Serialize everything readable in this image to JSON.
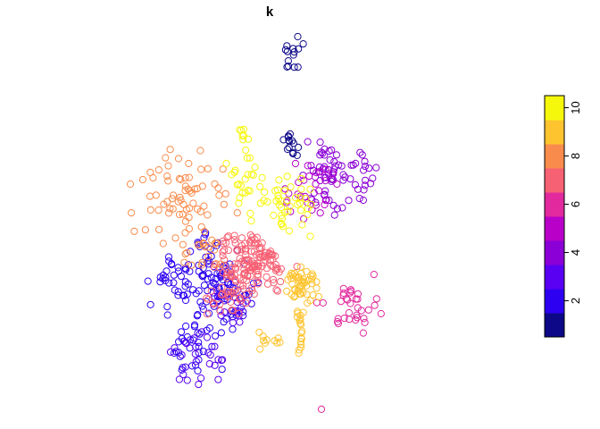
{
  "chart_data": {
    "type": "scatter",
    "title": "k",
    "legend_position": "right",
    "legend_type": "colorbar",
    "colorbar_range": [
      0.5,
      10.5
    ],
    "colorbar_ticks": [
      "2",
      "4",
      "6",
      "8",
      "10"
    ],
    "colorbar_tick_values": [
      2,
      4,
      6,
      8,
      10
    ],
    "grid": false,
    "axes_visible": false,
    "classes": [
      {
        "k": 1,
        "color": "#0D0887"
      },
      {
        "k": 2,
        "color": "#2D00F2"
      },
      {
        "k": 3,
        "color": "#5A00F2"
      },
      {
        "k": 4,
        "color": "#8A00D6"
      },
      {
        "k": 5,
        "color": "#B800C9"
      },
      {
        "k": 6,
        "color": "#E22A9E"
      },
      {
        "k": 7,
        "color": "#F76174"
      },
      {
        "k": 8,
        "color": "#F98C4C"
      },
      {
        "k": 9,
        "color": "#FDC430"
      },
      {
        "k": 10,
        "color": "#F6F80C"
      }
    ],
    "clusters": [
      {
        "k": 1,
        "n": 14,
        "x": [
          0.535,
          0.535
        ],
        "y": [
          0.88,
          0.96
        ],
        "spread": 0.012
      },
      {
        "k": 1,
        "n": 14,
        "x": [
          0.525,
          0.54
        ],
        "y": [
          0.66,
          0.72
        ],
        "spread": 0.01
      },
      {
        "k": 2,
        "n": 95,
        "x": [
          0.33,
          0.42
        ],
        "y": [
          0.23,
          0.38
        ],
        "spread": 0.03
      },
      {
        "k": 2,
        "n": 35,
        "x": [
          0.24,
          0.31
        ],
        "y": [
          0.3,
          0.4
        ],
        "spread": 0.025
      },
      {
        "k": 2,
        "n": 30,
        "x": [
          0.26,
          0.37
        ],
        "y": [
          0.12,
          0.21
        ],
        "spread": 0.02
      },
      {
        "k": 2,
        "n": 12,
        "x": [
          0.32,
          0.36
        ],
        "y": [
          0.38,
          0.46
        ],
        "spread": 0.015
      },
      {
        "k": 3,
        "n": 26,
        "x": [
          0.275,
          0.37
        ],
        "y": [
          0.08,
          0.19
        ],
        "spread": 0.018
      },
      {
        "k": 3,
        "n": 14,
        "x": [
          0.37,
          0.43
        ],
        "y": [
          0.23,
          0.3
        ],
        "spread": 0.015
      },
      {
        "k": 4,
        "n": 55,
        "x": [
          0.56,
          0.73
        ],
        "y": [
          0.52,
          0.66
        ],
        "spread": 0.018
      },
      {
        "k": 4,
        "n": 18,
        "x": [
          0.6,
          0.63
        ],
        "y": [
          0.6,
          0.67
        ],
        "spread": 0.012
      },
      {
        "k": 5,
        "n": 28,
        "x": [
          0.54,
          0.6
        ],
        "y": [
          0.52,
          0.62
        ],
        "spread": 0.02
      },
      {
        "k": 6,
        "n": 34,
        "x": [
          0.62,
          0.72
        ],
        "y": [
          0.22,
          0.32
        ],
        "spread": 0.02
      },
      {
        "k": 6,
        "n": 1,
        "x": [
          0.6,
          0.6
        ],
        "y": [
          0.005,
          0.005
        ],
        "spread": 0.0
      },
      {
        "k": 7,
        "n": 150,
        "x": [
          0.37,
          0.5
        ],
        "y": [
          0.34,
          0.43
        ],
        "spread": 0.028
      },
      {
        "k": 7,
        "n": 22,
        "x": [
          0.36,
          0.42
        ],
        "y": [
          0.27,
          0.33
        ],
        "spread": 0.02
      },
      {
        "k": 8,
        "n": 70,
        "x": [
          0.2,
          0.38
        ],
        "y": [
          0.48,
          0.66
        ],
        "spread": 0.04
      },
      {
        "k": 8,
        "n": 20,
        "x": [
          0.3,
          0.37
        ],
        "y": [
          0.38,
          0.46
        ],
        "spread": 0.02
      },
      {
        "k": 9,
        "n": 50,
        "x": [
          0.53,
          0.58
        ],
        "y": [
          0.3,
          0.36
        ],
        "spread": 0.012
      },
      {
        "k": 9,
        "n": 18,
        "x": [
          0.55,
          0.555
        ],
        "y": [
          0.14,
          0.26
        ],
        "spread": 0.004
      },
      {
        "k": 9,
        "n": 10,
        "x": [
          0.46,
          0.5
        ],
        "y": [
          0.17,
          0.22
        ],
        "spread": 0.012
      },
      {
        "k": 10,
        "n": 45,
        "x": [
          0.48,
          0.56
        ],
        "y": [
          0.48,
          0.58
        ],
        "spread": 0.025
      },
      {
        "k": 10,
        "n": 20,
        "x": [
          0.4,
          0.46
        ],
        "y": [
          0.55,
          0.65
        ],
        "spread": 0.02
      },
      {
        "k": 10,
        "n": 8,
        "x": [
          0.42,
          0.43
        ],
        "y": [
          0.66,
          0.74
        ],
        "spread": 0.008
      }
    ]
  }
}
